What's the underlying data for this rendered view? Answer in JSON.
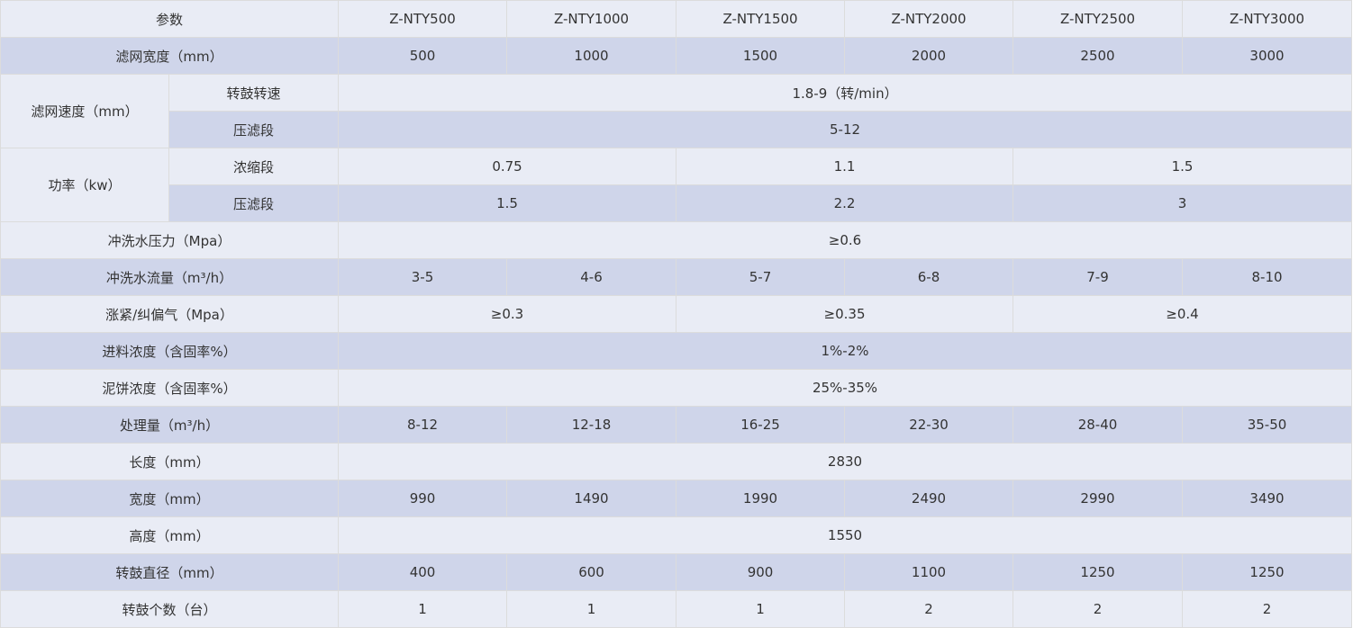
{
  "colors": {
    "row_light": "#e9ecf5",
    "row_dark": "#cfd5ea",
    "border": "#dcdcdc",
    "text": "#333333"
  },
  "table": {
    "rows": [
      [
        {
          "t": "参数",
          "cs": 2
        },
        {
          "t": "Z-NTY500"
        },
        {
          "t": "Z-NTY1000"
        },
        {
          "t": "Z-NTY1500"
        },
        {
          "t": "Z-NTY2000"
        },
        {
          "t": "Z-NTY2500"
        },
        {
          "t": "Z-NTY3000"
        }
      ],
      [
        {
          "t": "滤网宽度（mm）",
          "cs": 2
        },
        {
          "t": "500"
        },
        {
          "t": "1000"
        },
        {
          "t": "1500"
        },
        {
          "t": "2000"
        },
        {
          "t": "2500"
        },
        {
          "t": "3000"
        }
      ],
      [
        {
          "t": "滤网速度（mm）",
          "rs": 2
        },
        {
          "t": "转鼓转速"
        },
        {
          "t": "1.8-9（转/min）",
          "cs": 6
        }
      ],
      [
        {
          "t": "压滤段"
        },
        {
          "t": "5-12",
          "cs": 6
        }
      ],
      [
        {
          "t": "功率（kw）",
          "rs": 2
        },
        {
          "t": "浓缩段"
        },
        {
          "t": "0.75",
          "cs": 2
        },
        {
          "t": "1.1",
          "cs": 2
        },
        {
          "t": "1.5",
          "cs": 2
        }
      ],
      [
        {
          "t": "压滤段"
        },
        {
          "t": "1.5",
          "cs": 2
        },
        {
          "t": "2.2",
          "cs": 2
        },
        {
          "t": "3",
          "cs": 2
        }
      ],
      [
        {
          "t": "冲洗水压力（Mpa）",
          "cs": 2
        },
        {
          "t": "≥0.6",
          "cs": 6
        }
      ],
      [
        {
          "t": "冲洗水流量（m³/h）",
          "cs": 2
        },
        {
          "t": "3-5"
        },
        {
          "t": "4-6"
        },
        {
          "t": "5-7"
        },
        {
          "t": "6-8"
        },
        {
          "t": "7-9"
        },
        {
          "t": "8-10"
        }
      ],
      [
        {
          "t": "涨紧/纠偏气（Mpa）",
          "cs": 2
        },
        {
          "t": "≥0.3",
          "cs": 2
        },
        {
          "t": "≥0.35",
          "cs": 2
        },
        {
          "t": "≥0.4",
          "cs": 2
        }
      ],
      [
        {
          "t": "进料浓度（含固率%）",
          "cs": 2
        },
        {
          "t": "1%-2%",
          "cs": 6
        }
      ],
      [
        {
          "t": "泥饼浓度（含固率%）",
          "cs": 2
        },
        {
          "t": "25%-35%",
          "cs": 6
        }
      ],
      [
        {
          "t": "处理量（m³/h）",
          "cs": 2
        },
        {
          "t": "8-12"
        },
        {
          "t": "12-18"
        },
        {
          "t": "16-25"
        },
        {
          "t": "22-30"
        },
        {
          "t": "28-40"
        },
        {
          "t": "35-50"
        }
      ],
      [
        {
          "t": "长度（mm）",
          "cs": 2
        },
        {
          "t": "2830",
          "cs": 6
        }
      ],
      [
        {
          "t": "宽度（mm）",
          "cs": 2
        },
        {
          "t": "990"
        },
        {
          "t": "1490"
        },
        {
          "t": "1990"
        },
        {
          "t": "2490"
        },
        {
          "t": "2990"
        },
        {
          "t": "3490"
        }
      ],
      [
        {
          "t": "高度（mm）",
          "cs": 2
        },
        {
          "t": "1550",
          "cs": 6
        }
      ],
      [
        {
          "t": "转鼓直径（mm）",
          "cs": 2
        },
        {
          "t": "400"
        },
        {
          "t": "600"
        },
        {
          "t": "900"
        },
        {
          "t": "1100"
        },
        {
          "t": "1250"
        },
        {
          "t": "1250"
        }
      ],
      [
        {
          "t": "转鼓个数（台）",
          "cs": 2
        },
        {
          "t": "1"
        },
        {
          "t": "1"
        },
        {
          "t": "1"
        },
        {
          "t": "2"
        },
        {
          "t": "2"
        },
        {
          "t": "2"
        }
      ]
    ]
  }
}
